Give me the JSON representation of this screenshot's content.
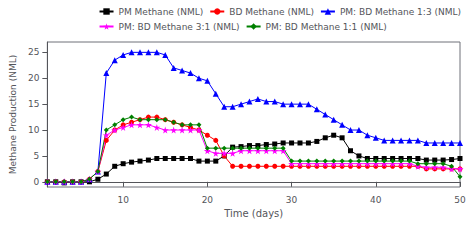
{
  "chart_data": {
    "type": "line",
    "title": "",
    "xlabel": "Time (days)",
    "ylabel": "Methane Production (NML)",
    "xlim": [
      1,
      50
    ],
    "ylim": [
      -1,
      27
    ],
    "xticks": [
      10,
      20,
      30,
      40,
      50
    ],
    "yticks": [
      0,
      5,
      10,
      15,
      20,
      25
    ],
    "grid": false,
    "legend": "upper right",
    "x": [
      1,
      2,
      3,
      4,
      5,
      6,
      7,
      8,
      9,
      10,
      11,
      12,
      13,
      14,
      15,
      16,
      17,
      18,
      19,
      20,
      21,
      22,
      23,
      24,
      25,
      26,
      27,
      28,
      29,
      30,
      31,
      32,
      33,
      34,
      35,
      36,
      37,
      38,
      39,
      40,
      41,
      42,
      43,
      44,
      45,
      46,
      47,
      48,
      49,
      50
    ],
    "series": [
      {
        "name": "PM Methane (NML)",
        "color": "#000000",
        "marker": "square",
        "values": [
          0,
          0,
          -0.2,
          0,
          0,
          0,
          0.5,
          1.5,
          3.0,
          3.5,
          3.8,
          4.0,
          4.2,
          4.5,
          4.5,
          4.5,
          4.5,
          4.5,
          4.0,
          4.0,
          4.0,
          5.0,
          6.7,
          6.8,
          7.0,
          7.0,
          7.2,
          7.3,
          7.5,
          7.5,
          7.5,
          7.5,
          7.8,
          8.5,
          9.0,
          8.5,
          6.0,
          5.0,
          4.5,
          4.5,
          4.5,
          4.5,
          4.5,
          4.5,
          4.5,
          4.2,
          4.2,
          4.2,
          4.3,
          4.5
        ]
      },
      {
        "name": "BD Methane (NML)",
        "color": "#ff0000",
        "marker": "circle",
        "values": [
          0,
          0,
          0,
          0,
          0,
          0.5,
          2,
          8,
          10,
          11,
          11.5,
          12,
          12.5,
          12.5,
          12,
          11.5,
          11,
          10.5,
          10,
          9,
          8,
          5,
          3,
          3,
          3,
          3,
          3,
          3,
          3,
          3,
          3,
          3,
          3,
          3,
          3,
          3,
          3,
          3,
          3,
          3,
          3,
          3,
          3,
          3,
          3,
          2.5,
          2.5,
          2.5,
          2.5,
          2.5
        ]
      },
      {
        "name": "PM: BD Methane 1:3 (NML)",
        "color": "#0000ff",
        "marker": "triangle",
        "values": [
          0,
          0,
          0,
          0,
          0,
          0.5,
          2,
          21,
          23.5,
          24.5,
          25,
          25,
          25,
          25,
          24.5,
          22,
          21.5,
          21,
          20,
          19.5,
          17,
          14.5,
          14.5,
          15,
          15.5,
          16,
          15.5,
          15.5,
          15,
          15,
          15,
          15,
          14,
          13,
          12,
          11,
          10,
          10,
          9,
          8.5,
          8,
          8,
          8,
          8,
          8,
          7.5,
          7.5,
          7.5,
          7.5,
          7.5
        ]
      },
      {
        "name": "PM: BD Methane 3:1 (NML)",
        "color": "#ff00ff",
        "marker": "star",
        "values": [
          0,
          0,
          0,
          0,
          0,
          0.5,
          2,
          9,
          10,
          10.5,
          11,
          11,
          11,
          10.5,
          10,
          10,
          10,
          10,
          10,
          6,
          5.5,
          5.5,
          5.5,
          6,
          6,
          6,
          6,
          6,
          6,
          3.5,
          3.5,
          3.5,
          3.5,
          3.5,
          3.5,
          3.5,
          3.5,
          3.5,
          3.5,
          3.5,
          3.5,
          3.5,
          3.5,
          3.5,
          3,
          2.8,
          2.8,
          2.8,
          2.5,
          2.5
        ]
      },
      {
        "name": "PM: BD Methane 1:1 (NML)",
        "color": "#008000",
        "marker": "diamond",
        "values": [
          0,
          0,
          0,
          0,
          0,
          0.5,
          2,
          10,
          11,
          12,
          12.5,
          12,
          12,
          12,
          12,
          11.5,
          11,
          11,
          11,
          6.5,
          6.5,
          6.5,
          6.5,
          6.5,
          6.5,
          6.5,
          6.5,
          6.5,
          6.5,
          4,
          4,
          4,
          4,
          4,
          4,
          4,
          4,
          4,
          4,
          4,
          4,
          4,
          4,
          4,
          3.5,
          3.5,
          3.5,
          3.5,
          3,
          1
        ]
      }
    ]
  }
}
